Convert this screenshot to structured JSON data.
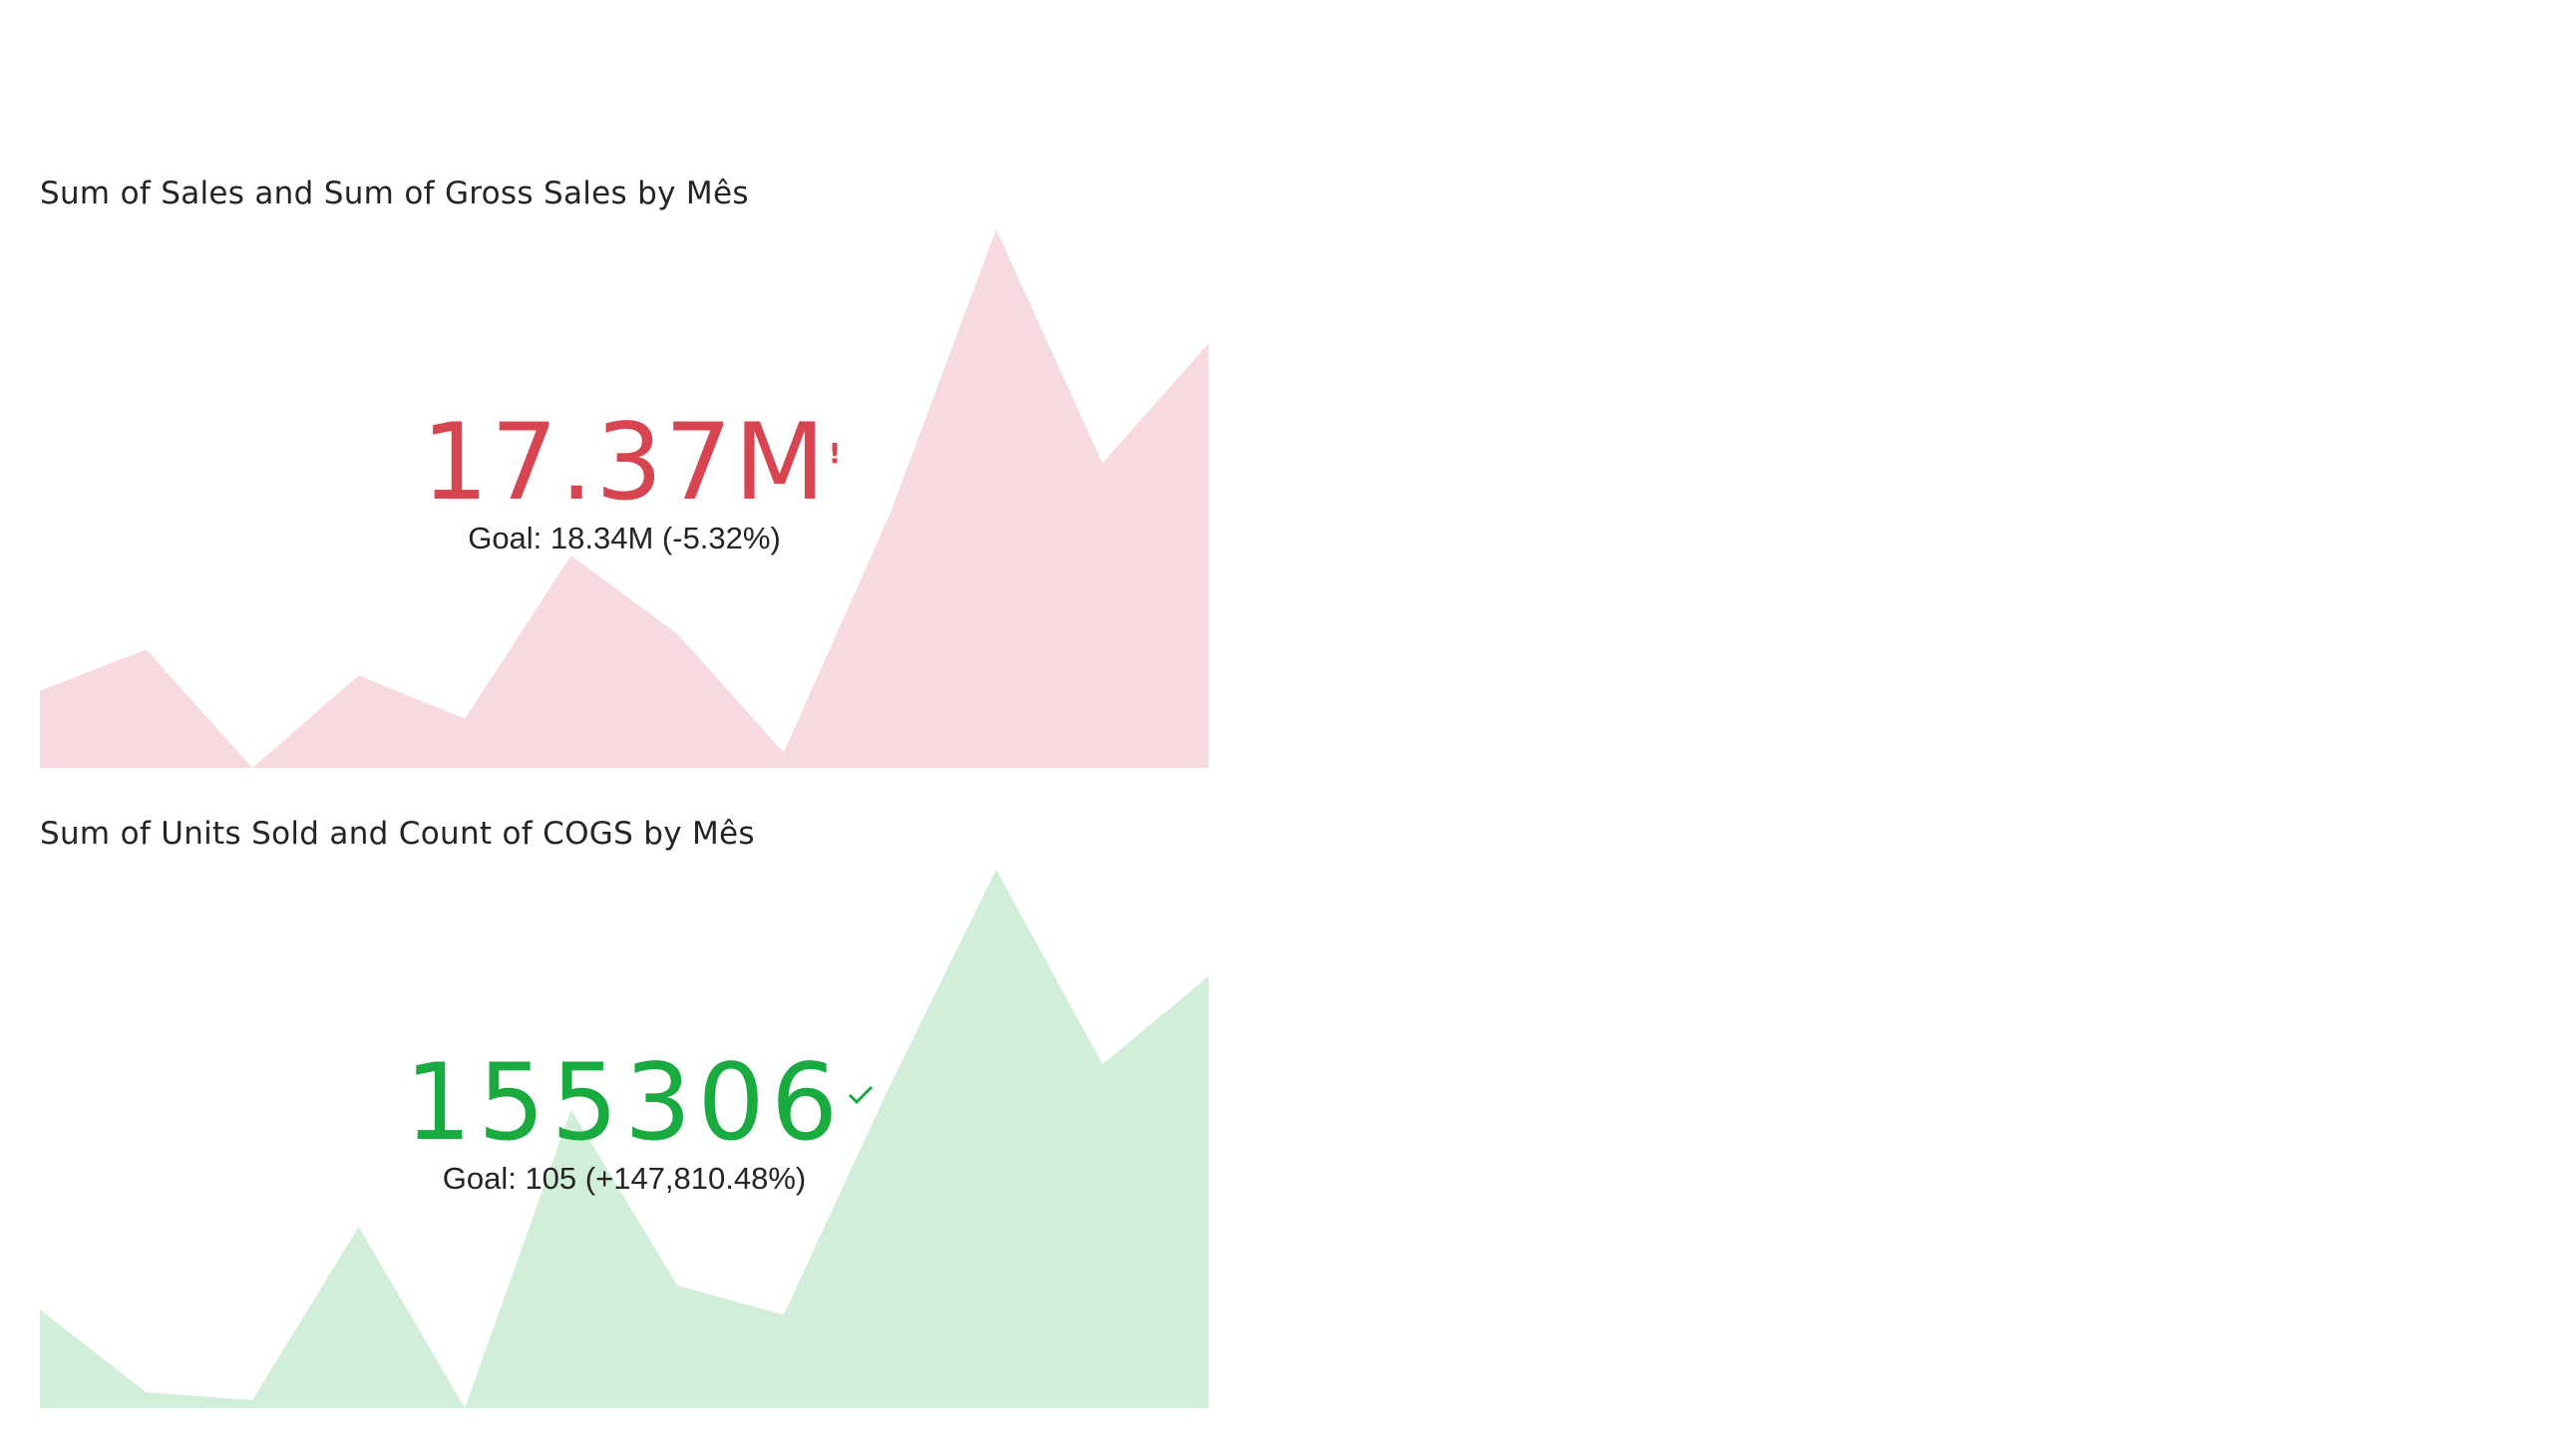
{
  "visuals": {
    "sales": {
      "title": "Sum of Sales and Sum of Gross Sales by Mês",
      "value": "17.37M",
      "goal_text": "Goal: 18.34M (-5.32%)",
      "status": "warning",
      "status_icon": "exclamation-icon",
      "accent_color": "#d64550",
      "fill_color": "#f6dadf"
    },
    "units": {
      "title": "Sum of Units Sold and Count of COGS by Mês",
      "value": "155306",
      "goal_text": "Goal: 105 (+147,810.48%)",
      "status": "good",
      "status_icon": "check-icon",
      "accent_color": "#1aab40",
      "fill_color": "#d1eed9"
    }
  },
  "chart_data": [
    {
      "type": "area",
      "title": "Sum of Sales and Sum of Gross Sales by Mês",
      "kpi_value": "17.37M",
      "goal": "18.34M",
      "goal_delta": "-5.32%",
      "x": [
        1,
        2,
        3,
        4,
        5,
        6,
        7,
        8,
        9,
        10,
        11,
        12
      ],
      "values": [
        0.9,
        1.17,
        0.4,
        1.0,
        0.72,
        1.78,
        1.27,
        0.5,
        2.05,
        3.9,
        2.38,
        3.16
      ],
      "ylim": [
        0.4,
        3.9
      ],
      "grid": false,
      "legend": "none"
    },
    {
      "type": "area",
      "title": "Sum of Units Sold and Count of COGS by Mês",
      "kpi_value": "155306",
      "goal": "105",
      "goal_delta": "+147,810.48%",
      "x": [
        1,
        2,
        3,
        4,
        5,
        6,
        7,
        8,
        9,
        10,
        11,
        12
      ],
      "values": [
        10200,
        7100,
        6800,
        13300,
        6500,
        17700,
        11100,
        10000,
        18600,
        26700,
        19400,
        22700
      ],
      "ylim": [
        6500,
        26700
      ],
      "grid": false,
      "legend": "none"
    }
  ]
}
